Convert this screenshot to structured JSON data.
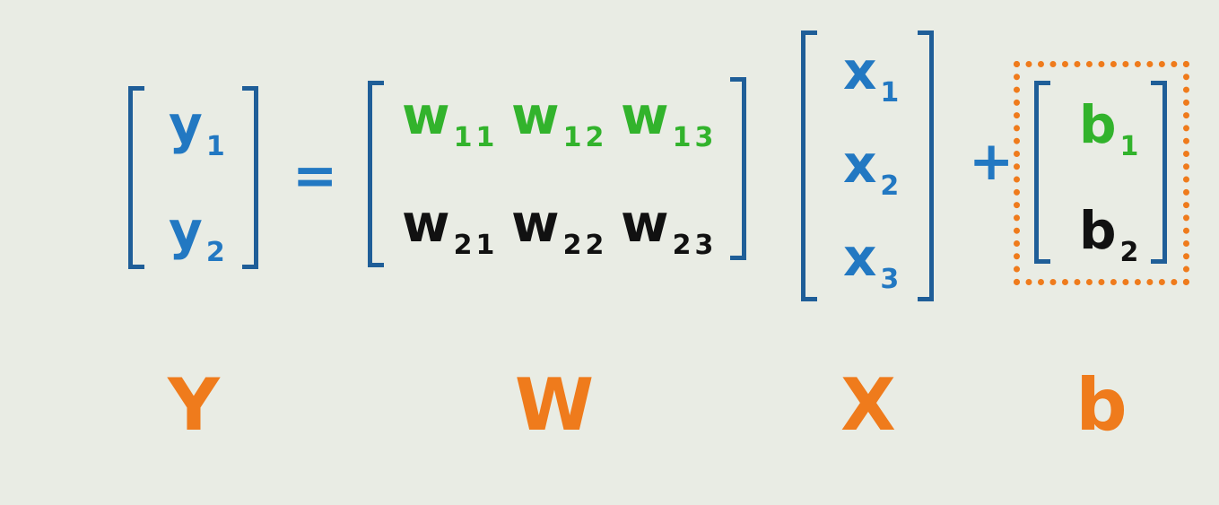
{
  "y_vector": [
    {
      "base": "y",
      "sub": "1"
    },
    {
      "base": "y",
      "sub": "2"
    }
  ],
  "equals": "=",
  "w_matrix": [
    [
      {
        "base": "w",
        "sub": "11"
      },
      {
        "base": "w",
        "sub": "12"
      },
      {
        "base": "w",
        "sub": "13"
      }
    ],
    [
      {
        "base": "w",
        "sub": "21"
      },
      {
        "base": "w",
        "sub": "22"
      },
      {
        "base": "w",
        "sub": "23"
      }
    ]
  ],
  "x_vector": [
    {
      "base": "x",
      "sub": "1"
    },
    {
      "base": "x",
      "sub": "2"
    },
    {
      "base": "x",
      "sub": "3"
    }
  ],
  "plus": "+",
  "b_vector": [
    {
      "base": "b",
      "sub": "1"
    },
    {
      "base": "b",
      "sub": "2"
    }
  ],
  "captions": {
    "y": "Y",
    "w": "W",
    "x": "X",
    "b": "b"
  },
  "colors": {
    "background": "#e9ece4",
    "vector_text": "#2278c2",
    "row1_weights": "#32b32c",
    "row2_weights": "#111111",
    "brackets": "#1f5e98",
    "captions": "#ef7b1c",
    "highlight_border": "#ef7b1c"
  }
}
